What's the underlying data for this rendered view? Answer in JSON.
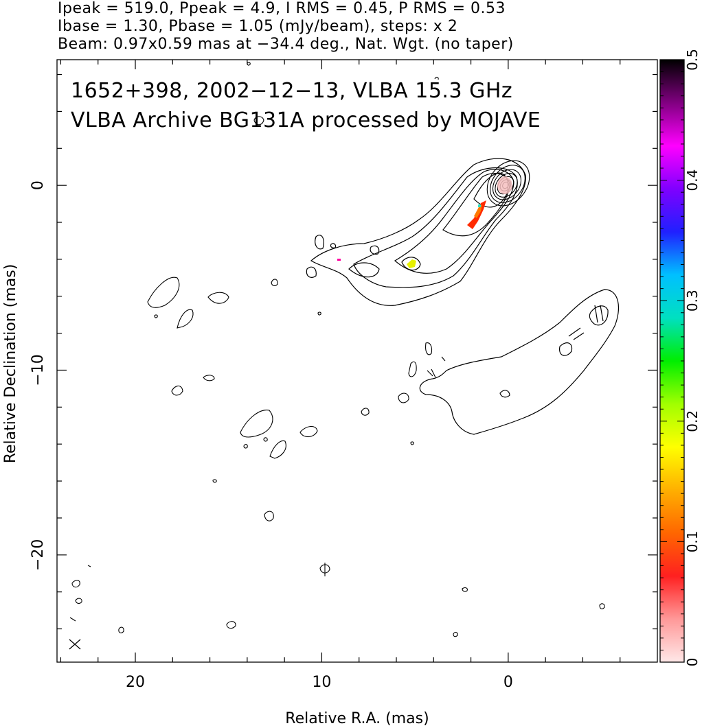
{
  "header": {
    "line1": "Ipeak = 519.0, Ppeak = 4.9, I RMS = 0.45, P RMS = 0.53",
    "line2": "Ibase = 1.30, Pbase = 1.05 (mJy/beam), steps: x 2",
    "line3": "Beam: 0.97x0.59 mas at −34.4 deg., Nat. Wgt. (no taper)"
  },
  "chart_data": {
    "type": "contour",
    "title_line1": "1652+398, 2002−12−13, VLBA 15.3 GHz",
    "title_line2": "VLBA Archive BG131A processed by MOJAVE",
    "xlabel": "Relative R.A. (mas)",
    "ylabel": "Relative Declination (mas)",
    "xlim": [
      24.2,
      -8.0
    ],
    "ylim": [
      -25.8,
      6.8
    ],
    "x_ticks": [
      20,
      10,
      0
    ],
    "x_tick_labels": [
      "20",
      "10",
      "0"
    ],
    "y_ticks": [
      0,
      -10,
      -20
    ],
    "y_tick_labels": [
      "0",
      "−10",
      "−20"
    ],
    "colorbar": {
      "range": [
        0,
        0.5
      ],
      "ticks": [
        0,
        0.1,
        0.2,
        0.3,
        0.4,
        0.5
      ],
      "tick_labels": [
        "0",
        "0.1",
        "0.2",
        "0.3",
        "0.4",
        "0.5"
      ],
      "colors": [
        "#ffe8e8",
        "#ff9999",
        "#ff2020",
        "#ff6600",
        "#ffb000",
        "#ffff00",
        "#a0ff00",
        "#00ee00",
        "#00e0c0",
        "#00c0ff",
        "#2020ff",
        "#8000ff",
        "#ff00ff",
        "#800080",
        "#000000"
      ]
    },
    "core": {
      "x": 0.0,
      "y": 0.0,
      "levels": 8
    },
    "beam": {
      "x": 23.4,
      "y": -24.7,
      "major": 0.97,
      "minor": 0.59,
      "pa": -34.4
    },
    "polarization_patches": [
      {
        "x": 1.6,
        "y": -1.7,
        "fraction": 0.12
      },
      {
        "x": 5.0,
        "y": -4.3,
        "fraction": 0.22
      }
    ]
  }
}
